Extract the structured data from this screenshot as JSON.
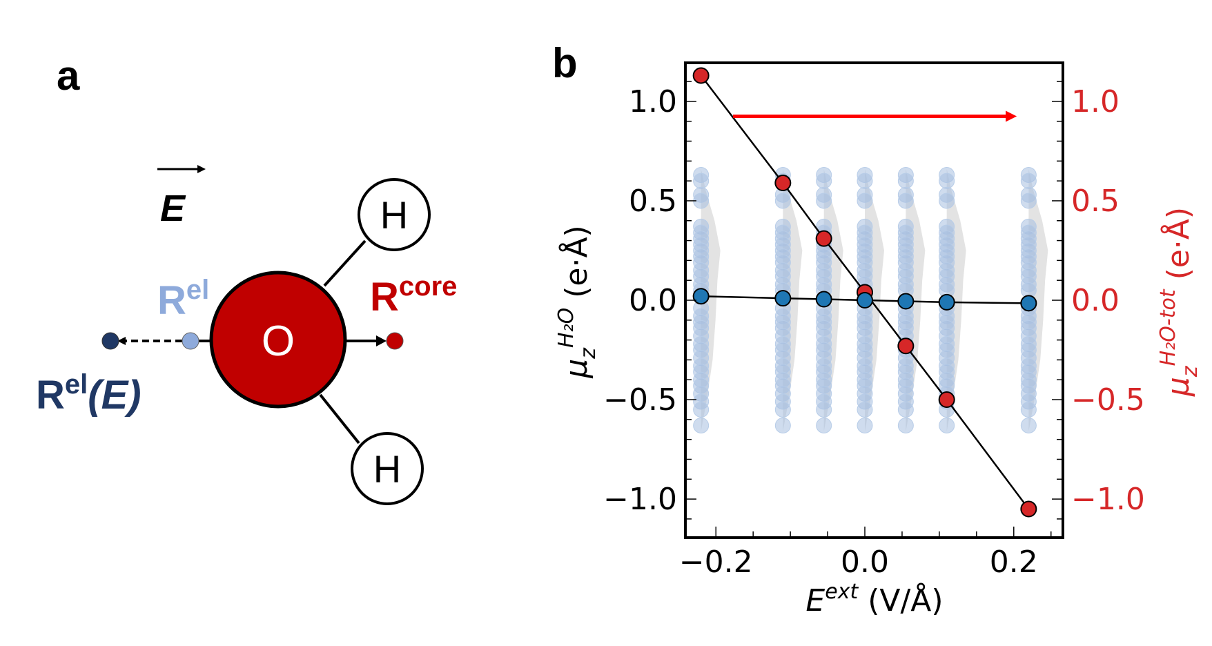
{
  "panel_a": {
    "label": "a",
    "field_label": "E",
    "r_el_label": "R",
    "r_el_sup": "el",
    "r_core_label": "R",
    "r_core_sup": "core",
    "r_el_e_label": "R",
    "r_el_e_sup": "el",
    "r_el_e_arg": "(E)",
    "oxygen": "O",
    "hydrogen_top": "H",
    "hydrogen_bottom": "H",
    "colors": {
      "oxygen": "#c00000",
      "r_el": "#8eaadb",
      "r_el_e": "#203864",
      "r_core": "#c00000"
    }
  },
  "panel_b": {
    "label": "b"
  },
  "chart_data": {
    "type": "scatter",
    "x": [
      -0.22,
      -0.11,
      -0.055,
      0.0,
      0.055,
      0.11,
      0.22
    ],
    "series": [
      {
        "name": "mu_z H2O-tot (right axis)",
        "axis": "right",
        "color": "#d62728",
        "values": [
          1.13,
          0.59,
          0.31,
          0.04,
          -0.23,
          -0.5,
          -1.05
        ]
      },
      {
        "name": "mu_z H2O mean (left axis)",
        "axis": "left",
        "color": "#1f77b4",
        "values": [
          0.02,
          0.01,
          0.005,
          0.0,
          -0.005,
          -0.01,
          -0.015
        ]
      }
    ],
    "distribution": {
      "name": "individual molecule dipoles",
      "color": "#a7c0e0",
      "values": [
        0.63,
        0.6,
        0.53,
        0.5,
        0.37,
        0.34,
        0.31,
        0.28,
        0.25,
        0.22,
        0.19,
        0.15,
        0.12,
        0.08,
        0.05,
        -0.04,
        -0.08,
        -0.11,
        -0.14,
        -0.18,
        -0.22,
        -0.25,
        -0.29,
        -0.33,
        -0.36,
        -0.4,
        -0.43,
        -0.47,
        -0.51,
        -0.55,
        -0.63
      ]
    },
    "annotation_arrow": {
      "color": "#ff0000",
      "from": [
        -0.177,
        0.925
      ],
      "to": [
        0.204,
        0.925
      ]
    },
    "xlabel": "E",
    "xlabel_sup": "ext",
    "xlabel_unit": "(V/Å)",
    "ylabel_left": "μ",
    "ylabel_left_sub": "z",
    "ylabel_left_sup": "H₂O",
    "ylabel_left_unit": "(e·Å)",
    "ylabel_right": "μ",
    "ylabel_right_sub": "z",
    "ylabel_right_sup": "H₂O-tot",
    "ylabel_right_unit": "(e·Å)",
    "xlim": [
      -0.241,
      0.266
    ],
    "ylim": [
      -1.194,
      1.194
    ],
    "xticks": [
      -0.2,
      0.0,
      0.2
    ],
    "xtick_labels": [
      "−0.2",
      "0.0",
      "0.2"
    ],
    "yticks": [
      1.0,
      0.5,
      0.0,
      -0.5,
      -1.0
    ],
    "ytick_labels": [
      "1.0",
      "0.5",
      "0.0",
      "−0.5",
      "−1.0"
    ],
    "right_axis_color": "#d62728",
    "grid": false
  }
}
